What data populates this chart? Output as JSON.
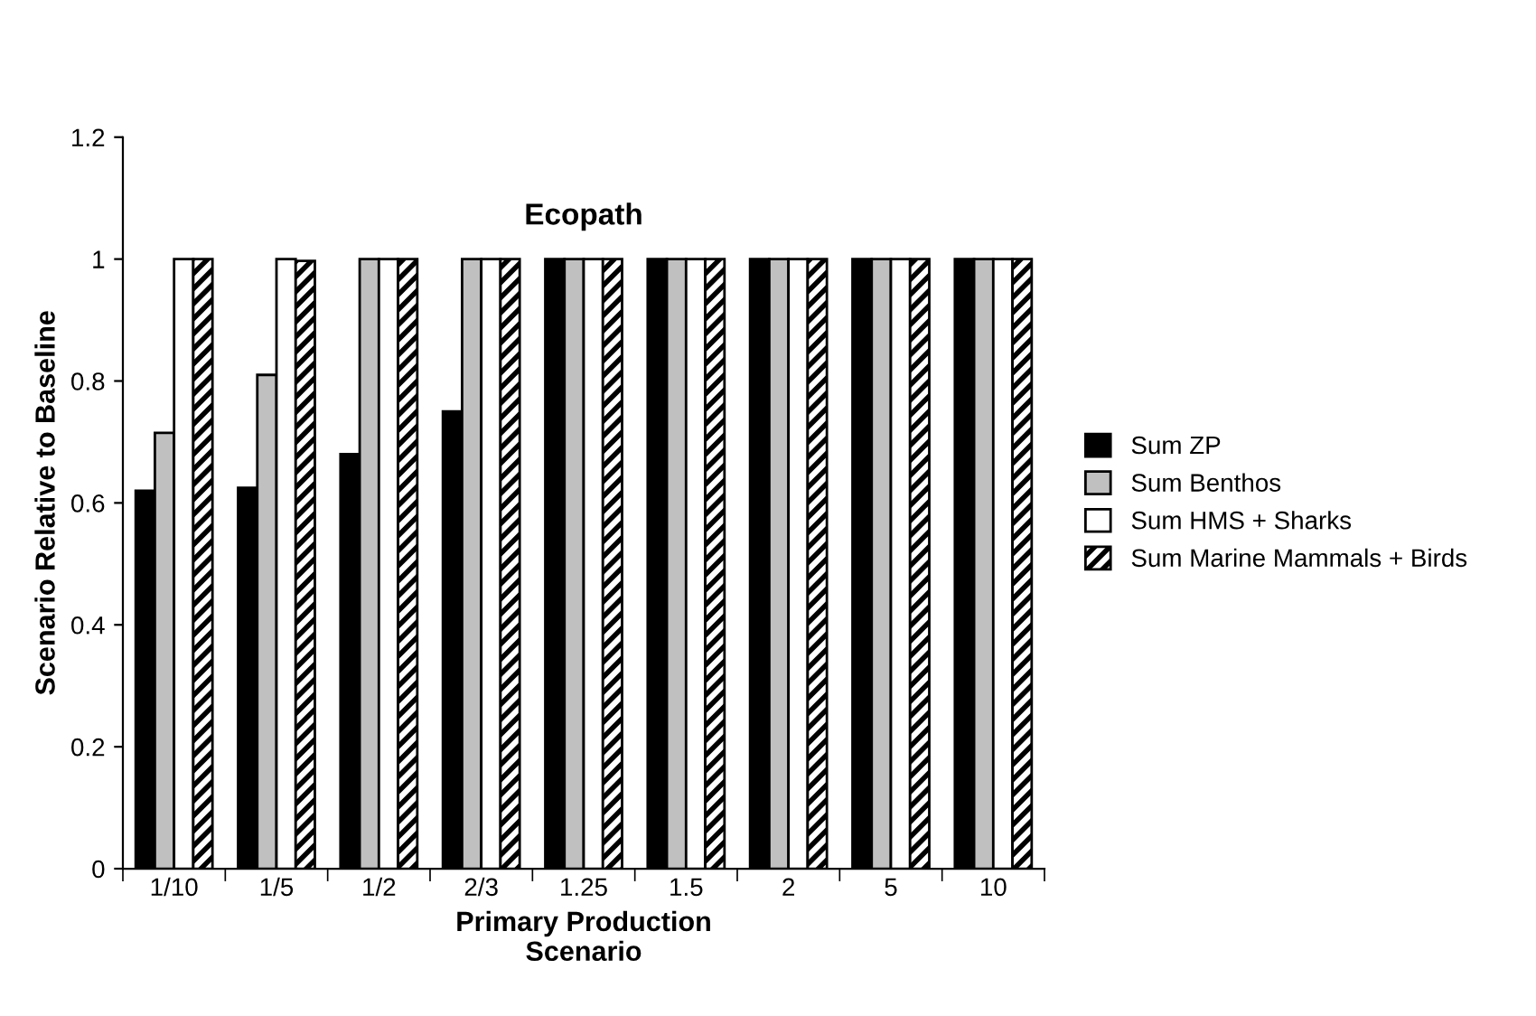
{
  "chart_data": {
    "type": "bar",
    "title": "Ecopath",
    "xlabel": "Primary Production\nScenario",
    "ylabel": "Scenario Relative to Baseline",
    "categories": [
      "1/10",
      "1/5",
      "1/2",
      "2/3",
      "1.25",
      "1.5",
      "2",
      "5",
      "10"
    ],
    "series": [
      {
        "name": "Sum ZP",
        "color": "#000000",
        "values": [
          0.62,
          0.625,
          0.68,
          0.75,
          1,
          1,
          1,
          1,
          1
        ]
      },
      {
        "name": "Sum Benthos",
        "color": "#c0c0c0",
        "values": [
          0.715,
          0.81,
          1,
          1,
          1,
          1,
          1,
          1,
          1
        ]
      },
      {
        "name": "Sum HMS + Sharks",
        "color": "#ffffff",
        "values": [
          1,
          1,
          1,
          1,
          1,
          1,
          1,
          1,
          1
        ]
      },
      {
        "name": "Sum Marine Mammals + Birds",
        "color": "#000000",
        "values": [
          1,
          0.997,
          1,
          1,
          1,
          1,
          1,
          1,
          1
        ]
      }
    ],
    "ylim": [
      0,
      1.2
    ],
    "yticks": [
      0,
      0.2,
      0.4,
      0.6,
      0.8,
      1,
      1.2
    ],
    "grid": false,
    "legend": "right"
  }
}
